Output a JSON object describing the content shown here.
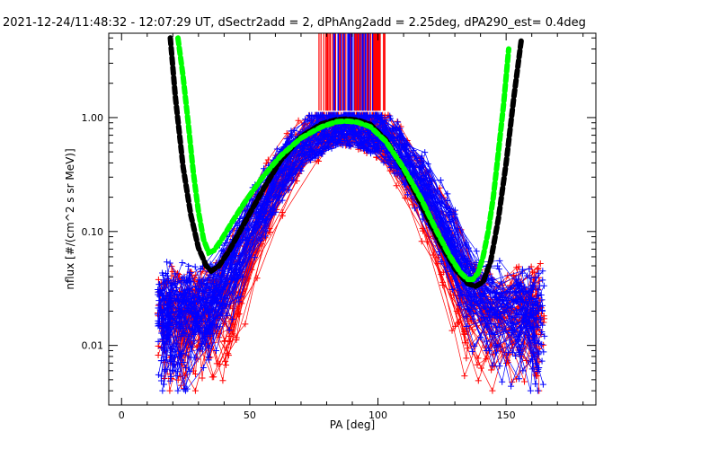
{
  "chart_data": {
    "type": "line",
    "title": "2021-12-24/11:48:32 - 12:07:29 UT, dSectr2add = 2, dPhAng2add = 2.25deg, dPA290_est=   0.4deg",
    "xlabel": "PA [deg]",
    "ylabel": "nflux [#/(cm^2 s sr MeV)]",
    "xlim": [
      -5,
      185
    ],
    "ylim": [
      0.003,
      5.5
    ],
    "yscale": "log",
    "x_ticks": [
      0,
      50,
      100,
      150
    ],
    "x_tick_labels": [
      "0",
      "50",
      "100",
      "150"
    ],
    "y_ticks": [
      0.01,
      0.1,
      1.0
    ],
    "y_tick_labels": [
      "0.01",
      "0.10",
      "1.00"
    ],
    "grid": false,
    "colors": {
      "red": "#ff0000",
      "blue": "#0000ff",
      "black": "#000000",
      "green": "#00ff00"
    },
    "series": [
      {
        "style": "thick-dashed",
        "color": "#000000",
        "x": [
          19.0,
          21.0,
          24.0,
          27.0,
          30.0,
          33.0,
          35.0,
          38.0,
          42.0,
          48.0,
          55.0,
          62.0,
          70.0,
          78.0,
          84.0,
          88.0,
          92.0,
          97.0,
          103.0,
          110.0,
          117.0,
          124.0,
          130.0,
          135.0,
          138.0,
          141.0,
          144.0,
          147.0,
          150.0,
          153.0,
          156.0
        ],
        "y": [
          5.0,
          1.5,
          0.37,
          0.14,
          0.072,
          0.05,
          0.045,
          0.05,
          0.068,
          0.12,
          0.23,
          0.42,
          0.68,
          0.88,
          0.96,
          0.97,
          0.95,
          0.87,
          0.64,
          0.35,
          0.17,
          0.081,
          0.047,
          0.035,
          0.033,
          0.036,
          0.055,
          0.13,
          0.4,
          1.5,
          5.0
        ]
      },
      {
        "style": "thick-dashed",
        "color": "#00ff00",
        "x": [
          22.0,
          24.0,
          26.0,
          28.0,
          30.0,
          32.0,
          34.0,
          36.0,
          39.0,
          43.0,
          48.0,
          55.0,
          62.0,
          70.0,
          78.0,
          84.0,
          88.0,
          92.0,
          97.0,
          103.0,
          110.0,
          117.0,
          123.0,
          128.0,
          132.0,
          135.0,
          137.0,
          139.0,
          141.0,
          143.0,
          145.0,
          147.0,
          149.0,
          151.0
        ],
        "y": [
          5.0,
          2.3,
          0.9,
          0.33,
          0.15,
          0.085,
          0.065,
          0.068,
          0.085,
          0.12,
          0.18,
          0.3,
          0.46,
          0.66,
          0.83,
          0.92,
          0.93,
          0.91,
          0.83,
          0.62,
          0.36,
          0.19,
          0.1,
          0.061,
          0.044,
          0.038,
          0.038,
          0.043,
          0.06,
          0.1,
          0.2,
          0.5,
          1.3,
          4.0
        ]
      }
    ],
    "scatter_envelopes": {
      "note": "many red and blue '+'-marked traces; values approximate",
      "red_count": 55,
      "blue_count": 70
    },
    "vertical_bars": {
      "x_range": [
        77,
        103
      ],
      "y_range": [
        1.15,
        5.5
      ]
    }
  }
}
